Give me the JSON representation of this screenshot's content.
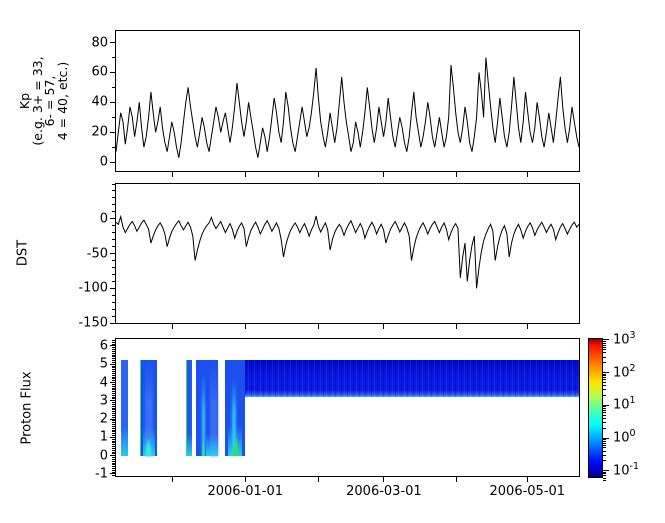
{
  "figure_title": "",
  "x_axis": {
    "x_start": "2005-11-07",
    "x_end": "2006-05-23",
    "total_days": 197,
    "ticks": [
      {
        "day": 24,
        "label": ""
      },
      {
        "day": 55,
        "label": "2006-01-01"
      },
      {
        "day": 86,
        "label": ""
      },
      {
        "day": 114,
        "label": "2006-03-01"
      },
      {
        "day": 145,
        "label": ""
      },
      {
        "day": 175,
        "label": "2006-05-01"
      }
    ]
  },
  "chart_data": [
    {
      "type": "line",
      "name": "kp",
      "ylabel_lines": [
        "Kp",
        "(e.g. 3+ = 33,",
        "6- = 57,",
        "4 = 40, etc.)"
      ],
      "ylim": [
        -5.9,
        87.7
      ],
      "yticks": [
        0,
        20,
        40,
        60,
        80
      ],
      "ytick_labels": [
        "0",
        "20",
        "40",
        "60",
        "80"
      ],
      "minor_step": 10,
      "line_color": "#000000",
      "values": [
        7,
        20,
        33,
        27,
        12,
        23,
        37,
        30,
        17,
        27,
        40,
        23,
        10,
        17,
        30,
        47,
        33,
        20,
        27,
        37,
        23,
        13,
        7,
        17,
        27,
        20,
        10,
        3,
        13,
        27,
        40,
        50,
        37,
        27,
        17,
        10,
        20,
        30,
        23,
        13,
        7,
        17,
        27,
        37,
        30,
        20,
        27,
        33,
        23,
        13,
        23,
        37,
        53,
        40,
        27,
        17,
        27,
        40,
        30,
        20,
        10,
        3,
        13,
        23,
        17,
        7,
        17,
        30,
        43,
        33,
        20,
        13,
        27,
        47,
        37,
        23,
        13,
        7,
        17,
        27,
        37,
        27,
        17,
        23,
        33,
        47,
        63,
        43,
        27,
        17,
        10,
        20,
        33,
        23,
        13,
        23,
        40,
        57,
        40,
        27,
        17,
        7,
        13,
        27,
        20,
        10,
        20,
        33,
        50,
        37,
        23,
        13,
        23,
        37,
        27,
        17,
        27,
        43,
        30,
        17,
        10,
        20,
        30,
        23,
        13,
        7,
        17,
        33,
        47,
        30,
        20,
        10,
        17,
        27,
        40,
        30,
        17,
        10,
        20,
        30,
        20,
        10,
        17,
        30,
        65,
        50,
        33,
        20,
        13,
        23,
        37,
        27,
        13,
        7,
        17,
        30,
        60,
        47,
        30,
        70,
        53,
        37,
        23,
        13,
        27,
        43,
        30,
        17,
        10,
        20,
        37,
        57,
        40,
        23,
        13,
        27,
        47,
        33,
        20,
        13,
        23,
        40,
        30,
        17,
        10,
        20,
        33,
        23,
        13,
        27,
        43,
        57,
        37,
        23,
        13,
        23,
        37,
        27,
        17,
        10
      ]
    },
    {
      "type": "line",
      "name": "dst",
      "ylabel": "DST",
      "ylim": [
        -150,
        50
      ],
      "yticks": [
        0,
        -50,
        -100,
        -150
      ],
      "ytick_labels": [
        "0",
        "-50",
        "-100",
        "-150"
      ],
      "minor_step": 10,
      "line_color": "#000000",
      "values": [
        -5,
        -8,
        3,
        -12,
        -20,
        -14,
        -8,
        -4,
        -10,
        -18,
        -12,
        -6,
        -2,
        -8,
        -15,
        -35,
        -25,
        -16,
        -10,
        -6,
        -12,
        -22,
        -40,
        -28,
        -18,
        -12,
        -7,
        -3,
        -10,
        -16,
        -10,
        -5,
        -12,
        -25,
        -60,
        -45,
        -32,
        -22,
        -15,
        -10,
        -6,
        2,
        -8,
        -14,
        -9,
        -4,
        -12,
        -20,
        -13,
        -7,
        -15,
        -28,
        -18,
        -11,
        -6,
        -14,
        -40,
        -27,
        -17,
        -10,
        -5,
        -12,
        -22,
        -15,
        -8,
        -3,
        -10,
        -18,
        -12,
        -6,
        -14,
        -30,
        -55,
        -38,
        -26,
        -17,
        -11,
        -6,
        -12,
        -20,
        -13,
        -7,
        -15,
        -25,
        -16,
        -9,
        4,
        -11,
        -19,
        -12,
        -6,
        -16,
        -45,
        -30,
        -20,
        -13,
        -8,
        -14,
        -24,
        -15,
        -8,
        -3,
        -11,
        -20,
        -13,
        -7,
        -14,
        -28,
        -18,
        -11,
        -5,
        -12,
        -22,
        -14,
        -8,
        -16,
        -35,
        -24,
        -15,
        -9,
        -4,
        -11,
        -19,
        -12,
        -6,
        -13,
        -25,
        -60,
        -42,
        -28,
        -18,
        -11,
        -6,
        -13,
        -22,
        -14,
        -8,
        -4,
        -12,
        -20,
        -12,
        -6,
        -15,
        -30,
        -20,
        -12,
        -7,
        -14,
        -85,
        -55,
        -35,
        -90,
        -60,
        -38,
        -25,
        -100,
        -70,
        -48,
        -32,
        -22,
        -14,
        -8,
        -18,
        -60,
        -40,
        -26,
        -16,
        -10,
        -22,
        -55,
        -35,
        -22,
        -14,
        -8,
        -16,
        -28,
        -18,
        -11,
        -6,
        -13,
        -24,
        -16,
        -10,
        -5,
        -12,
        -20,
        -13,
        -8,
        -15,
        -30,
        -20,
        -12,
        -7,
        -14,
        -22,
        -15,
        -9,
        -5,
        -12,
        -8
      ]
    },
    {
      "type": "heatmap",
      "name": "proton_flux",
      "ylabel": "Proton Flux",
      "ylim": [
        -1.11,
        6.38
      ],
      "yticks": [
        -1,
        0,
        1,
        2,
        3,
        4,
        5,
        6
      ],
      "ytick_labels": [
        "-1",
        "0",
        "1",
        "2",
        "3",
        "4",
        "5",
        "6"
      ],
      "minor_step": 0.1,
      "colormap": "jet",
      "colorbar": {
        "scale": "log",
        "tick_exponents": [
          3,
          2,
          1,
          0,
          -1
        ],
        "tick_labels": [
          "10^3",
          "10^2",
          "10^1",
          "10^0",
          "10^-1"
        ],
        "top_log": 3.03,
        "bottom_log": -1.31
      },
      "bands": [
        {
          "day0": 2.1,
          "day1": 4.9,
          "y0": 0,
          "y1": 5.25,
          "base": "#2a64f0",
          "features": [
            {
              "type": "glow",
              "day0": 2.1,
              "day1": 4.9,
              "y0": 0,
              "y1": 1.6,
              "color": "#27d3f2"
            }
          ]
        },
        {
          "day0": 10.2,
          "day1": 17.6,
          "y0": 0,
          "y1": 5.25,
          "base": "#1c50ee",
          "features": [
            {
              "type": "edge",
              "day0": 10.2,
              "day1": 10.65,
              "y0": 0,
              "y1": 5.25,
              "color": "#2ddf5e"
            },
            {
              "type": "streak",
              "day0": 12.2,
              "day1": 15.8,
              "y0": 0,
              "y1": 5.25,
              "color": "#3f76f3"
            },
            {
              "type": "glow",
              "day0": 11.5,
              "day1": 16.5,
              "y0": 0,
              "y1": 1.5,
              "color": "#2bd9f1"
            },
            {
              "type": "patch",
              "day0": 12.3,
              "day1": 15.2,
              "y0": 0,
              "y1": 0.9,
              "color": "#35e8e0"
            }
          ]
        },
        {
          "day0": 29.6,
          "day1": 32.3,
          "y0": 0,
          "y1": 5.25,
          "base": "#2258ef",
          "features": [
            {
              "type": "edge",
              "day0": 29.6,
              "day1": 30.0,
              "y0": 0,
              "y1": 5.25,
              "color": "#2ddf5e"
            },
            {
              "type": "glow",
              "day0": 30.0,
              "day1": 32.3,
              "y0": 0,
              "y1": 1.2,
              "color": "#2bd9f1"
            }
          ]
        },
        {
          "day0": 33.9,
          "day1": 43.3,
          "y0": 0,
          "y1": 5.25,
          "base": "#1d4eee",
          "features": [
            {
              "type": "streak",
              "day0": 36.4,
              "day1": 37.8,
              "y0": 0,
              "y1": 4.5,
              "color": "#38e0ea"
            },
            {
              "type": "streak",
              "day0": 40.2,
              "day1": 43.3,
              "y0": 0,
              "y1": 5.25,
              "color": "#3a72f3"
            },
            {
              "type": "glow",
              "day0": 38.5,
              "day1": 43.3,
              "y0": 0,
              "y1": 1.2,
              "color": "#2bd9f1"
            },
            {
              "type": "patch",
              "day0": 36.5,
              "day1": 37.7,
              "y0": 0,
              "y1": 0.9,
              "color": "#30e39a"
            }
          ]
        },
        {
          "day0": 46.3,
          "day1": 54.7,
          "y0": 0,
          "y1": 5.25,
          "base": "#1c50ee",
          "features": [
            {
              "type": "streak",
              "day0": 49.3,
              "day1": 51.2,
              "y0": 0,
              "y1": 4.2,
              "color": "#36d9f0"
            },
            {
              "type": "glow",
              "day0": 47.5,
              "day1": 53.5,
              "y0": 0,
              "y1": 1.7,
              "color": "#2bd9f1"
            },
            {
              "type": "patch",
              "day0": 49.6,
              "day1": 52.3,
              "y0": 0,
              "y1": 1.0,
              "color": "#2de063"
            }
          ]
        }
      ],
      "upper_band": {
        "day0": 54.7,
        "day1": 197,
        "y0": 3.2,
        "y1": 5.25,
        "color_top": "#0009c6",
        "color_mid": "#0a18e6",
        "color_low": "#2e52f7",
        "color_glow": "#46b7f5"
      }
    }
  ]
}
